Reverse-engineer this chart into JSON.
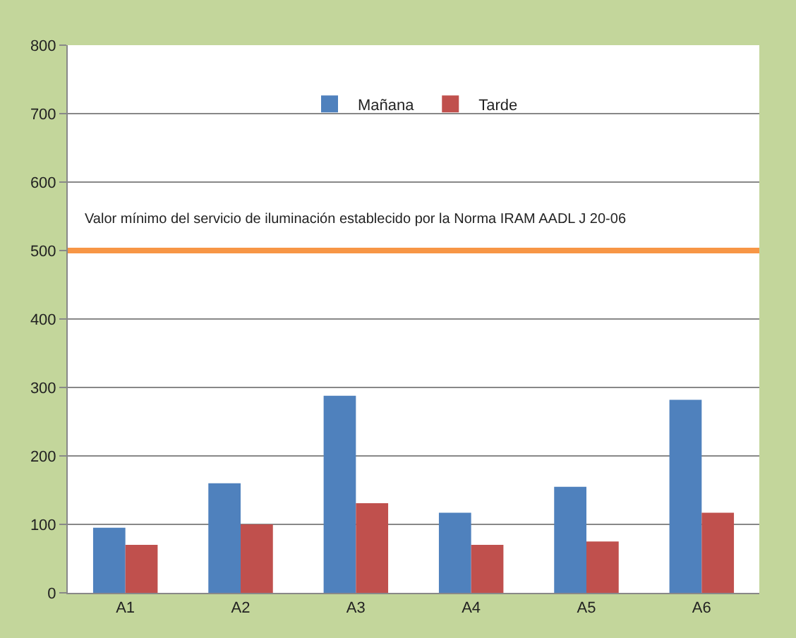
{
  "chart_data": {
    "type": "bar",
    "categories": [
      "A1",
      "A2",
      "A3",
      "A4",
      "A5",
      "A6"
    ],
    "series": [
      {
        "name": "Mañana",
        "color": "#4f81bd",
        "values": [
          95,
          160,
          288,
          117,
          155,
          282
        ]
      },
      {
        "name": "Tarde",
        "color": "#c0504d",
        "values": [
          70,
          100,
          131,
          70,
          75,
          117
        ]
      }
    ],
    "ylim": [
      0,
      800
    ],
    "yticks": [
      0,
      100,
      200,
      300,
      400,
      500,
      600,
      700,
      800
    ],
    "grid": "y",
    "legend": "top",
    "ref_lines": [
      {
        "axis": "y",
        "value": 500,
        "label": "Valor mínimo del servicio de iluminación establecido por la Norma IRAM AADL J 20-06",
        "color": "#f79646"
      }
    ]
  }
}
